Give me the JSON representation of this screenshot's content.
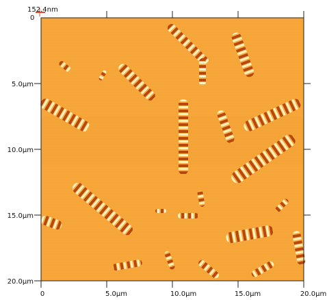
{
  "colorbar": {
    "max_label": "152.4nm",
    "min_label": "0"
  },
  "axes": {
    "y_ticks": [
      "5.0µm",
      "10.0µm",
      "15.0µm",
      "20.0µm"
    ],
    "x_ticks": [
      "0",
      "5.0µm",
      "10.0µm",
      "15.0µm",
      "20.0µm"
    ]
  },
  "colors": {
    "background": "#f7a73a",
    "stripe_dark": "#c64b0d",
    "stripe_light": "#fff2b8"
  }
}
